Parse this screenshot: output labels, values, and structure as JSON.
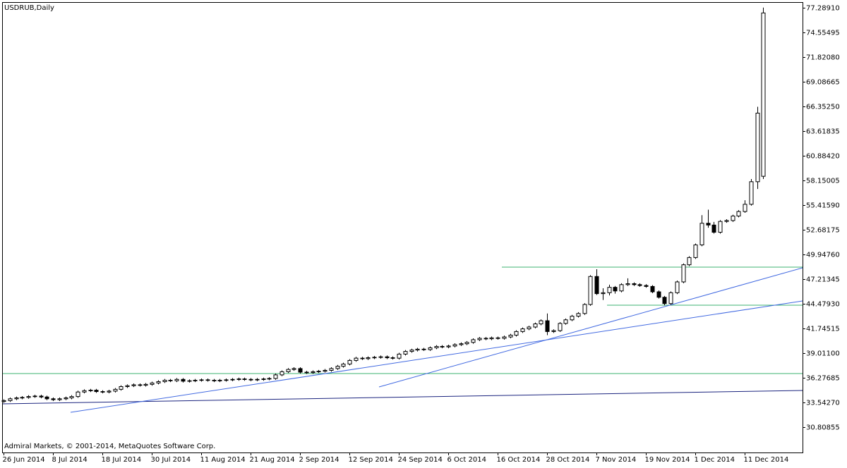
{
  "chart_data": {
    "type": "candlestick",
    "title": "USDRUB,Daily",
    "footnote": "Admiral Markets, © 2001-2014, MetaQuotes Software Corp.",
    "up_color": "#ffffff",
    "down_color": "#000000",
    "outline_color": "#000000",
    "ylim": [
      28.0,
      77.9
    ],
    "yticks": [
      {
        "value": 77.2891,
        "label": "77.28910"
      },
      {
        "value": 74.55495,
        "label": "74.55495"
      },
      {
        "value": 71.8208,
        "label": "71.82080"
      },
      {
        "value": 69.08665,
        "label": "69.08665"
      },
      {
        "value": 66.3525,
        "label": "66.35250"
      },
      {
        "value": 63.61835,
        "label": "63.61835"
      },
      {
        "value": 60.8842,
        "label": "60.88420"
      },
      {
        "value": 58.15005,
        "label": "58.15005"
      },
      {
        "value": 55.4159,
        "label": "55.41590"
      },
      {
        "value": 52.68175,
        "label": "52.68175"
      },
      {
        "value": 49.9476,
        "label": "49.94760"
      },
      {
        "value": 47.21345,
        "label": "47.21345"
      },
      {
        "value": 44.4793,
        "label": "44.47930"
      },
      {
        "value": 41.74515,
        "label": "41.74515"
      },
      {
        "value": 39.011,
        "label": "39.01100"
      },
      {
        "value": 36.27685,
        "label": "36.27685"
      },
      {
        "value": 33.5427,
        "label": "33.54270"
      },
      {
        "value": 30.80855,
        "label": "30.80855"
      }
    ],
    "categories": [
      "26 Jun 2014",
      null,
      null,
      null,
      null,
      null,
      null,
      null,
      "8 Jul 2014",
      null,
      null,
      null,
      null,
      null,
      null,
      null,
      "18 Jul 2014",
      null,
      null,
      null,
      null,
      null,
      null,
      null,
      "30 Jul 2014",
      null,
      null,
      null,
      null,
      null,
      null,
      null,
      "11 Aug 2014",
      null,
      null,
      null,
      null,
      null,
      null,
      null,
      "21 Aug 2014",
      null,
      null,
      null,
      null,
      null,
      null,
      null,
      "2 Sep 2014",
      null,
      null,
      null,
      null,
      null,
      null,
      null,
      "12 Sep 2014",
      null,
      null,
      null,
      null,
      null,
      null,
      null,
      "24 Sep 2014",
      null,
      null,
      null,
      null,
      null,
      null,
      null,
      "6 Oct 2014",
      null,
      null,
      null,
      null,
      null,
      null,
      null,
      "16 Oct 2014",
      null,
      null,
      null,
      null,
      null,
      null,
      null,
      "28 Oct 2014",
      null,
      null,
      null,
      null,
      null,
      null,
      null,
      "7 Nov 2014",
      null,
      null,
      null,
      null,
      null,
      null,
      null,
      "19 Nov 2014",
      null,
      null,
      null,
      null,
      null,
      null,
      null,
      "1 Dec 2014",
      null,
      null,
      null,
      null,
      null,
      null,
      null,
      "11 Dec 2014",
      null,
      null,
      null
    ],
    "open": [
      33.65,
      33.75,
      33.95,
      34.05,
      34.1,
      34.2,
      34.25,
      34.15,
      33.95,
      33.85,
      33.95,
      34.05,
      34.2,
      34.7,
      34.85,
      34.9,
      34.75,
      34.7,
      34.8,
      35.0,
      35.3,
      35.4,
      35.5,
      35.45,
      35.55,
      35.7,
      35.85,
      36.0,
      35.95,
      36.1,
      35.9,
      35.95,
      36.0,
      36.05,
      36.0,
      35.95,
      36.0,
      36.05,
      36.1,
      36.15,
      36.1,
      36.05,
      36.1,
      36.15,
      36.2,
      36.6,
      36.95,
      37.2,
      37.3,
      36.9,
      36.85,
      36.95,
      37.0,
      37.1,
      37.3,
      37.55,
      37.8,
      38.2,
      38.45,
      38.4,
      38.5,
      38.55,
      38.6,
      38.5,
      38.45,
      38.9,
      39.2,
      39.35,
      39.45,
      39.4,
      39.6,
      39.75,
      39.7,
      39.8,
      39.95,
      40.05,
      40.2,
      40.5,
      40.65,
      40.6,
      40.7,
      40.65,
      40.8,
      41.0,
      41.4,
      41.7,
      41.9,
      42.25,
      42.6,
      41.4,
      41.5,
      42.3,
      42.7,
      43.1,
      43.4,
      44.4,
      47.5,
      45.6,
      45.7,
      46.3,
      45.9,
      46.6,
      46.7,
      46.6,
      46.5,
      46.4,
      45.8,
      45.2,
      44.5,
      45.7,
      46.9,
      48.8,
      49.6,
      51.0,
      53.4,
      53.2,
      52.4,
      53.6,
      53.7,
      54.2,
      54.7,
      55.5,
      58.0,
      58.6
    ],
    "high": [
      33.9,
      34.1,
      34.2,
      34.25,
      34.35,
      34.4,
      34.4,
      34.3,
      34.1,
      34.1,
      34.2,
      34.35,
      34.85,
      35.0,
      35.05,
      35.05,
      34.9,
      34.95,
      35.15,
      35.45,
      35.55,
      35.65,
      35.65,
      35.7,
      35.85,
      36.0,
      36.15,
      36.15,
      36.25,
      36.25,
      36.1,
      36.15,
      36.2,
      36.2,
      36.15,
      36.15,
      36.2,
      36.25,
      36.3,
      36.3,
      36.25,
      36.25,
      36.3,
      36.35,
      36.75,
      37.1,
      37.35,
      37.45,
      37.45,
      37.05,
      37.1,
      37.15,
      37.25,
      37.45,
      37.7,
      37.95,
      38.35,
      38.6,
      38.6,
      38.65,
      38.7,
      38.75,
      38.75,
      38.65,
      39.05,
      39.35,
      39.5,
      39.6,
      39.6,
      39.75,
      39.9,
      39.9,
      39.95,
      40.1,
      40.2,
      40.35,
      40.65,
      40.8,
      40.8,
      40.85,
      40.85,
      40.95,
      41.15,
      41.55,
      41.85,
      42.05,
      42.4,
      42.75,
      43.4,
      41.65,
      42.45,
      42.85,
      43.25,
      43.55,
      44.55,
      47.65,
      48.3,
      46.2,
      46.6,
      46.45,
      46.75,
      47.3,
      46.85,
      46.75,
      46.65,
      46.55,
      45.95,
      45.35,
      45.85,
      47.05,
      48.95,
      49.75,
      51.15,
      54.3,
      54.9,
      53.55,
      53.75,
      53.85,
      54.35,
      54.85,
      55.95,
      58.3,
      66.3,
      77.29
    ],
    "low": [
      33.5,
      33.6,
      33.8,
      33.9,
      33.95,
      34.05,
      34.0,
      33.8,
      33.7,
      33.7,
      33.8,
      33.9,
      34.05,
      34.55,
      34.7,
      34.6,
      34.55,
      34.55,
      34.65,
      34.85,
      35.15,
      35.25,
      35.3,
      35.3,
      35.4,
      35.55,
      35.7,
      35.8,
      35.8,
      35.75,
      35.75,
      35.8,
      35.85,
      35.85,
      35.8,
      35.8,
      35.85,
      35.9,
      35.95,
      35.95,
      35.9,
      35.9,
      35.95,
      36.0,
      36.05,
      36.45,
      36.8,
      37.05,
      36.75,
      36.7,
      36.7,
      36.8,
      36.85,
      36.95,
      37.15,
      37.4,
      37.65,
      38.05,
      38.25,
      38.25,
      38.35,
      38.4,
      38.35,
      38.3,
      38.3,
      38.75,
      39.05,
      39.2,
      39.25,
      39.25,
      39.45,
      39.55,
      39.55,
      39.65,
      39.8,
      39.9,
      40.05,
      40.35,
      40.45,
      40.45,
      40.5,
      40.5,
      40.65,
      40.85,
      41.25,
      41.55,
      41.75,
      42.1,
      41.0,
      41.25,
      41.35,
      42.15,
      42.55,
      42.95,
      43.25,
      44.25,
      45.45,
      44.9,
      45.4,
      45.6,
      45.75,
      46.45,
      46.45,
      46.35,
      46.25,
      45.65,
      45.05,
      44.3,
      44.35,
      45.55,
      46.75,
      48.65,
      49.45,
      50.85,
      52.9,
      52.25,
      52.25,
      53.45,
      53.55,
      54.05,
      54.55,
      55.35,
      57.2,
      58.3
    ],
    "close": [
      33.75,
      33.95,
      34.05,
      34.1,
      34.2,
      34.25,
      34.15,
      33.95,
      33.85,
      33.95,
      34.05,
      34.2,
      34.7,
      34.85,
      34.9,
      34.75,
      34.7,
      34.8,
      35.0,
      35.3,
      35.4,
      35.5,
      35.45,
      35.55,
      35.7,
      35.85,
      36.0,
      35.95,
      36.1,
      35.9,
      35.95,
      36.0,
      36.05,
      36.0,
      35.95,
      36.0,
      36.05,
      36.1,
      36.15,
      36.1,
      36.05,
      36.1,
      36.15,
      36.2,
      36.6,
      36.95,
      37.2,
      37.3,
      36.9,
      36.85,
      36.95,
      37.0,
      37.1,
      37.3,
      37.55,
      37.8,
      38.2,
      38.45,
      38.4,
      38.5,
      38.55,
      38.6,
      38.5,
      38.45,
      38.9,
      39.2,
      39.35,
      39.45,
      39.4,
      39.6,
      39.75,
      39.7,
      39.8,
      39.95,
      40.05,
      40.2,
      40.5,
      40.65,
      40.6,
      40.7,
      40.65,
      40.8,
      41.0,
      41.4,
      41.7,
      41.9,
      42.25,
      42.6,
      41.4,
      41.5,
      42.3,
      42.7,
      43.1,
      43.4,
      44.4,
      47.5,
      45.6,
      45.7,
      46.3,
      45.9,
      46.6,
      46.7,
      46.6,
      46.5,
      46.4,
      45.8,
      45.2,
      44.5,
      45.7,
      46.9,
      48.8,
      49.6,
      51.0,
      53.4,
      53.2,
      52.4,
      53.6,
      53.7,
      54.2,
      54.7,
      55.5,
      58.0,
      65.6,
      76.7
    ]
  }
}
